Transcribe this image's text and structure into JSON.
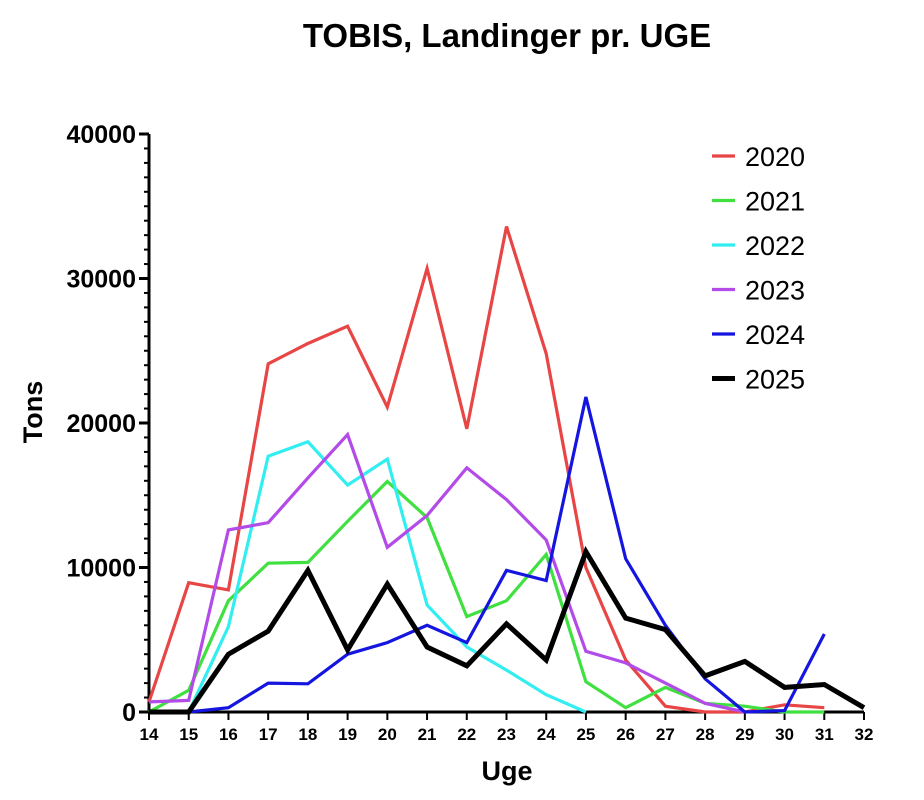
{
  "chart_data": {
    "type": "line",
    "title": "TOBIS, Landinger pr. UGE",
    "xlabel": "Uge",
    "ylabel": "Tons",
    "xlim": [
      14,
      32
    ],
    "ylim": [
      0,
      40000
    ],
    "xticks": [
      14,
      15,
      16,
      17,
      18,
      19,
      20,
      21,
      22,
      23,
      24,
      25,
      26,
      27,
      28,
      29,
      30,
      31,
      32
    ],
    "yticks": [
      0,
      10000,
      20000,
      30000,
      40000
    ],
    "ytick_labels": [
      "0",
      "10000",
      "20000",
      "30000",
      "40000"
    ],
    "legend_position": "top-right",
    "series": [
      {
        "name": "2020",
        "color": "#e84545",
        "x": [
          14,
          15,
          16,
          17,
          18,
          19,
          20,
          21,
          22,
          23,
          24,
          25,
          26,
          27,
          28,
          29,
          30,
          31
        ],
        "values": [
          700,
          8950,
          8450,
          24100,
          25500,
          26700,
          21100,
          30700,
          19600,
          33600,
          24800,
          10000,
          3600,
          400,
          0,
          0,
          500,
          300
        ]
      },
      {
        "name": "2021",
        "color": "#3fe03f",
        "x": [
          14,
          15,
          16,
          17,
          18,
          19,
          20,
          21,
          22,
          23,
          24,
          25,
          26,
          27,
          28,
          29,
          30,
          31
        ],
        "values": [
          0,
          1500,
          7700,
          10300,
          10350,
          13200,
          15950,
          13450,
          6600,
          7700,
          10900,
          2100,
          300,
          1700,
          600,
          400,
          0,
          0
        ]
      },
      {
        "name": "2022",
        "color": "#33eef0",
        "x": [
          14,
          15,
          16,
          17,
          18,
          19,
          20,
          21,
          22,
          23,
          24,
          25
        ],
        "values": [
          0,
          0,
          5900,
          17700,
          18700,
          15700,
          17500,
          7400,
          4500,
          2900,
          1200,
          0
        ]
      },
      {
        "name": "2023",
        "color": "#b24be8",
        "x": [
          14,
          15,
          16,
          17,
          18,
          19,
          20,
          21,
          22,
          23,
          24,
          25,
          26,
          27,
          28,
          29
        ],
        "values": [
          700,
          800,
          12600,
          13100,
          16200,
          19200,
          11400,
          13600,
          16900,
          14700,
          11900,
          4200,
          3400,
          2000,
          600,
          0
        ]
      },
      {
        "name": "2024",
        "color": "#1515e0",
        "x": [
          14,
          15,
          16,
          17,
          18,
          19,
          20,
          21,
          22,
          23,
          24,
          25,
          26,
          27,
          28,
          29,
          30,
          31
        ],
        "values": [
          0,
          0,
          300,
          2000,
          1950,
          4000,
          4800,
          6000,
          4800,
          9800,
          9100,
          21800,
          10600,
          6000,
          2300,
          0,
          100,
          5400
        ]
      },
      {
        "name": "2025",
        "color": "#000000",
        "x": [
          14,
          15,
          16,
          17,
          18,
          19,
          20,
          21,
          22,
          23,
          24,
          25,
          26,
          27,
          28,
          29,
          30,
          31,
          32
        ],
        "values": [
          0,
          0,
          4000,
          5600,
          9800,
          4300,
          8850,
          4500,
          3200,
          6100,
          3600,
          11100,
          6500,
          5700,
          2500,
          3500,
          1700,
          1900,
          300
        ]
      }
    ]
  }
}
